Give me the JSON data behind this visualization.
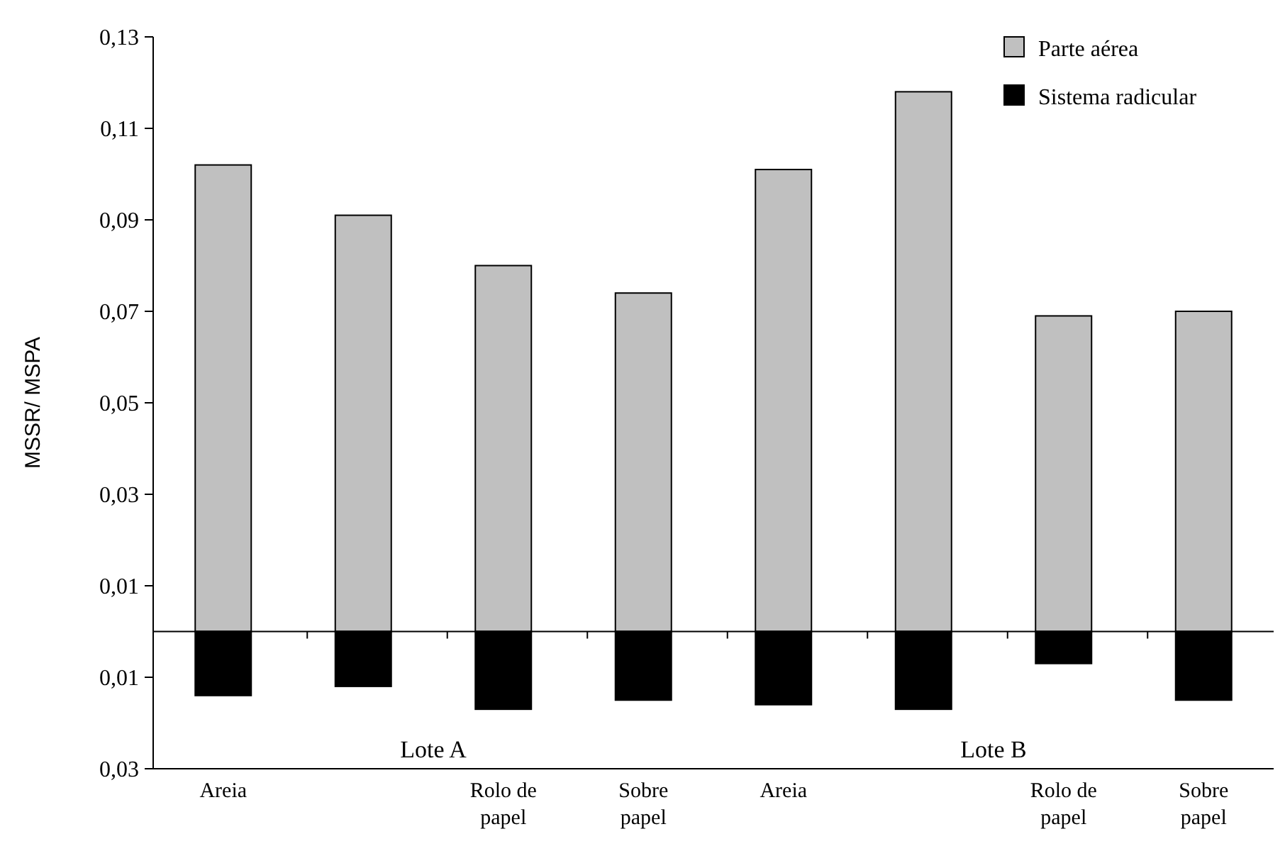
{
  "chart_data": {
    "type": "bar",
    "ylabel": "MSSR/ MSPA",
    "stacked": true,
    "legend": "top right",
    "categories": [
      "Areia",
      null,
      "Rolo de papel",
      "Sobre papel",
      "Areia",
      null,
      "Rolo de papel",
      "Sobre papel"
    ],
    "series": [
      {
        "name": "Parte aérea",
        "color": "#c0c0c0",
        "values": [
          0.102,
          0.091,
          0.08,
          0.074,
          0.101,
          0.118,
          0.069,
          0.07
        ]
      },
      {
        "name": "Sistema radicular",
        "color": "#000000",
        "values": [
          -0.014,
          -0.012,
          -0.017,
          -0.015,
          -0.016,
          -0.017,
          -0.007,
          -0.015
        ]
      }
    ],
    "ylim": [
      -0.03,
      0.13
    ],
    "yticks": [
      {
        "value": 0.13,
        "label": "0,13"
      },
      {
        "value": 0.11,
        "label": "0,11"
      },
      {
        "value": 0.09,
        "label": "0,09"
      },
      {
        "value": 0.07,
        "label": "0,07"
      },
      {
        "value": 0.05,
        "label": "0,05"
      },
      {
        "value": 0.03,
        "label": "0,03"
      },
      {
        "value": 0.01,
        "label": "0,01"
      },
      {
        "value": -0.01,
        "label": "0,01"
      },
      {
        "value": -0.03,
        "label": "0,03"
      }
    ],
    "annotations": [
      "Lote A",
      "Lote B"
    ]
  }
}
